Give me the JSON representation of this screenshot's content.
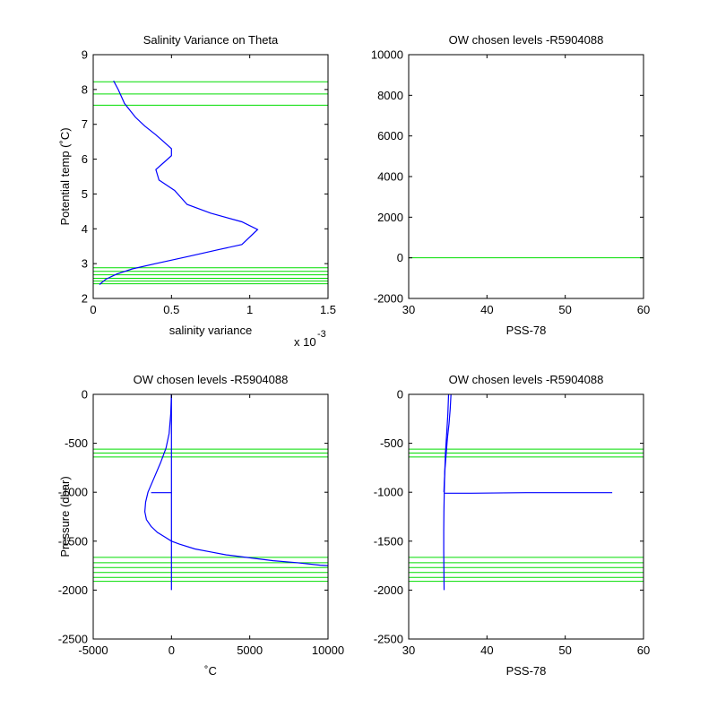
{
  "colors": {
    "profile": "#0000ff",
    "levels": "#00dd00",
    "axes": "#000000",
    "background": "#ffffff"
  },
  "chart_data": [
    {
      "type": "line",
      "title": "Salinity Variance on Theta",
      "xlabel": "salinity variance",
      "x_exponent": "x 10",
      "x_exponent_power": "-3",
      "ylabel": "Potential temp (˚C)",
      "xlim": [
        0,
        1.5
      ],
      "ylim": [
        2,
        9
      ],
      "xticks": [
        0,
        0.5,
        1,
        1.5
      ],
      "xtick_labels": [
        "0",
        "0.5",
        "1",
        "1.5"
      ],
      "yticks": [
        2,
        3,
        4,
        5,
        6,
        7,
        8,
        9
      ],
      "ytick_labels": [
        "2",
        "3",
        "4",
        "5",
        "6",
        "7",
        "8",
        "9"
      ],
      "series": [
        {
          "x": [
            0.13,
            0.16,
            0.2,
            0.27,
            0.33,
            0.4,
            0.45,
            0.5,
            0.5,
            0.45,
            0.4,
            0.42,
            0.52,
            0.6,
            0.75,
            0.95,
            1.05,
            0.95,
            0.8,
            0.6,
            0.4,
            0.25,
            0.15,
            0.08,
            0.04
          ],
          "y": [
            8.25,
            8.0,
            7.6,
            7.2,
            6.95,
            6.7,
            6.5,
            6.3,
            6.1,
            5.9,
            5.7,
            5.4,
            5.1,
            4.7,
            4.45,
            4.2,
            3.98,
            3.55,
            3.4,
            3.2,
            3.0,
            2.85,
            2.7,
            2.55,
            2.4
          ]
        }
      ],
      "hlines": [
        8.22,
        7.87,
        7.55,
        2.88,
        2.78,
        2.68,
        2.58,
        2.5,
        2.42
      ]
    },
    {
      "type": "line",
      "title": "OW chosen levels -R5904088",
      "xlabel": "PSS-78",
      "ylabel": "",
      "xlim": [
        30,
        60
      ],
      "ylim": [
        -2000,
        10000
      ],
      "xticks": [
        30,
        40,
        50,
        60
      ],
      "xtick_labels": [
        "30",
        "40",
        "50",
        "60"
      ],
      "yticks": [
        -2000,
        0,
        2000,
        4000,
        6000,
        8000,
        10000
      ],
      "ytick_labels": [
        "-2000",
        "0",
        "2000",
        "4000",
        "6000",
        "8000",
        "10000"
      ],
      "series": [],
      "hlines": [
        0
      ]
    },
    {
      "type": "line",
      "title": "OW chosen levels -R5904088",
      "xlabel": "˚C",
      "ylabel": "Pressure (dbar)",
      "xlim": [
        -5000,
        10000
      ],
      "ylim": [
        -2500,
        0
      ],
      "xticks": [
        -5000,
        0,
        5000,
        10000
      ],
      "xtick_labels": [
        "-5000",
        "0",
        "5000",
        "10000"
      ],
      "yticks": [
        -2500,
        -2000,
        -1500,
        -1000,
        -500,
        0
      ],
      "ytick_labels": [
        "-2500",
        "-2000",
        "-1500",
        "-1000",
        "-500",
        "0"
      ],
      "series": [
        {
          "x": [
            0,
            0,
            0,
            0,
            0
          ],
          "y": [
            0,
            -500,
            -1000,
            -1500,
            -2000
          ]
        },
        {
          "x": [
            0,
            -50,
            -150,
            -350,
            -700,
            -1100,
            -1500,
            -1650,
            -1700,
            -1600,
            -1300,
            -900,
            -400,
            0,
            500,
            1500,
            2500,
            3500,
            5000,
            6500,
            8000,
            9500,
            10000
          ],
          "y": [
            -5,
            -200,
            -400,
            -550,
            -700,
            -850,
            -1000,
            -1100,
            -1200,
            -1280,
            -1350,
            -1410,
            -1460,
            -1500,
            -1530,
            -1580,
            -1610,
            -1640,
            -1670,
            -1700,
            -1720,
            -1745,
            -1750
          ]
        },
        {
          "x": [
            -1300,
            0
          ],
          "y": [
            -1005,
            -1005
          ]
        }
      ],
      "hlines": [
        -560,
        -600,
        -640,
        -1665,
        -1720,
        -1770,
        -1820,
        -1870,
        -1910
      ]
    },
    {
      "type": "line",
      "title": "OW chosen levels -R5904088",
      "xlabel": "PSS-78",
      "ylabel": "",
      "xlim": [
        30,
        60
      ],
      "ylim": [
        -2500,
        0
      ],
      "xticks": [
        30,
        40,
        50,
        60
      ],
      "xtick_labels": [
        "30",
        "40",
        "50",
        "60"
      ],
      "yticks": [
        -2500,
        -2000,
        -1500,
        -1000,
        -500,
        0
      ],
      "ytick_labels": [
        "-2500",
        "-2000",
        "-1500",
        "-1000",
        "-500",
        "0"
      ],
      "series": [
        {
          "x": [
            35.1,
            35.0,
            34.85,
            34.7,
            34.6,
            34.55,
            34.5,
            34.48,
            34.48,
            34.5,
            34.52
          ],
          "y": [
            0,
            -200,
            -400,
            -600,
            -800,
            -1000,
            -1200,
            -1400,
            -1600,
            -1800,
            -2000
          ]
        },
        {
          "x": [
            35.4,
            35.3,
            35.15,
            34.95,
            34.8,
            34.65,
            34.55,
            34.5
          ],
          "y": [
            0,
            -150,
            -300,
            -450,
            -600,
            -750,
            -900,
            -1000
          ]
        },
        {
          "x": [
            34.6,
            38.0,
            45.0,
            56.0
          ],
          "y": [
            -1010,
            -1010,
            -1005,
            -1005
          ]
        }
      ],
      "hlines": [
        -560,
        -600,
        -640,
        -1665,
        -1720,
        -1770,
        -1820,
        -1870,
        -1910
      ]
    }
  ]
}
